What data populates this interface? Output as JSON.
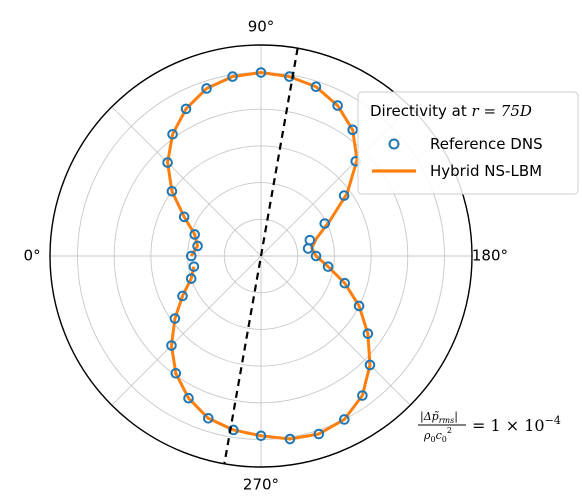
{
  "chart_data": {
    "type": "polar",
    "angle_ticks": [
      {
        "deg": 90,
        "label": "90°"
      },
      {
        "deg": 0,
        "label": "0°"
      },
      {
        "deg": 180,
        "label": "180°"
      },
      {
        "deg": 270,
        "label": "270°"
      }
    ],
    "theta_zero": "left",
    "theta_direction": "clockwise",
    "grid": true,
    "legend": {
      "placement": "right",
      "title_text": "Directivity at ",
      "title_math": "r = 75D",
      "entries": [
        {
          "label": "Reference DNS",
          "marker": "open-circle",
          "color": "#1f77b4"
        },
        {
          "label": "Hybrid NS-LBM",
          "marker": "line",
          "color": "#ff7f0e"
        }
      ]
    },
    "annotation": {
      "numerator": "|Δp̃",
      "numerator_sub": "rms",
      "numerator_end": "|",
      "denominator": "ρ",
      "denominator_sub": "0",
      "denominator_c": "c",
      "denominator_c_sub": "0",
      "denominator_c_sup": "2",
      "rhs": "= 1 × 10",
      "rhs_exp": "−4"
    },
    "axis_line_deg": 100,
    "series": [
      {
        "name": "Reference DNS",
        "style": "markers",
        "color": "#1f77b4",
        "theta_deg": [
          0,
          9,
          18,
          27,
          36,
          45,
          54,
          63,
          72,
          81,
          90,
          99,
          108,
          117,
          126,
          135,
          144,
          153,
          162,
          171,
          180,
          189,
          198,
          207,
          216,
          225,
          234,
          243,
          252,
          261,
          270,
          279,
          288,
          297,
          306,
          315,
          324,
          333,
          342,
          351
        ],
        "r": [
          0.38,
          0.35,
          0.38,
          0.47,
          0.6,
          0.72,
          0.82,
          0.9,
          0.96,
          0.99,
          1.0,
          0.99,
          0.97,
          0.92,
          0.85,
          0.73,
          0.56,
          0.39,
          0.28,
          0.26,
          0.3,
          0.37,
          0.48,
          0.6,
          0.72,
          0.84,
          0.94,
          1.0,
          1.02,
          1.01,
          0.98,
          0.96,
          0.93,
          0.87,
          0.79,
          0.69,
          0.58,
          0.48,
          0.4,
          0.37
        ]
      },
      {
        "name": "Hybrid NS-LBM",
        "style": "line",
        "color": "#ff7f0e",
        "theta_deg": [
          0,
          9,
          18,
          27,
          36,
          45,
          54,
          63,
          72,
          81,
          90,
          99,
          108,
          117,
          126,
          135,
          144,
          153,
          162,
          171,
          180,
          189,
          198,
          207,
          216,
          225,
          234,
          243,
          252,
          261,
          270,
          279,
          288,
          297,
          306,
          315,
          324,
          333,
          342,
          351
        ],
        "r": [
          0.38,
          0.35,
          0.38,
          0.47,
          0.6,
          0.72,
          0.82,
          0.9,
          0.96,
          0.99,
          1.0,
          0.99,
          0.97,
          0.92,
          0.85,
          0.74,
          0.58,
          0.42,
          0.32,
          0.28,
          0.3,
          0.37,
          0.48,
          0.6,
          0.72,
          0.84,
          0.94,
          1.0,
          1.02,
          1.01,
          0.98,
          0.96,
          0.93,
          0.87,
          0.79,
          0.69,
          0.58,
          0.48,
          0.4,
          0.37
        ]
      }
    ]
  }
}
